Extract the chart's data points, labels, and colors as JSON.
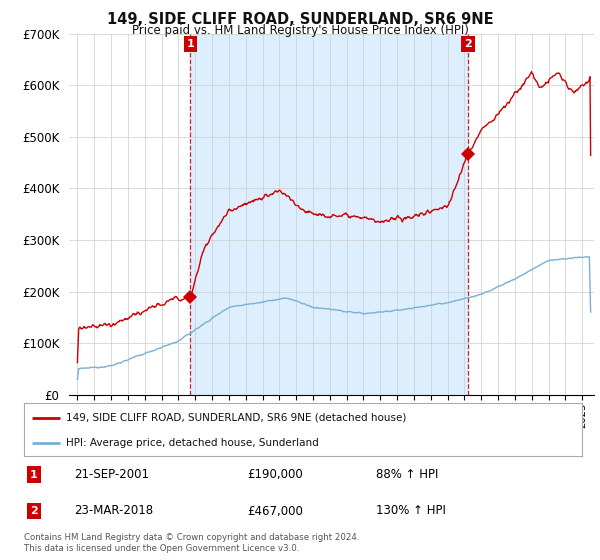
{
  "title": "149, SIDE CLIFF ROAD, SUNDERLAND, SR6 9NE",
  "subtitle": "Price paid vs. HM Land Registry's House Price Index (HPI)",
  "ylim": [
    0,
    700000
  ],
  "yticks": [
    0,
    100000,
    200000,
    300000,
    400000,
    500000,
    600000,
    700000
  ],
  "ytick_labels": [
    "£0",
    "£100K",
    "£200K",
    "£300K",
    "£400K",
    "£500K",
    "£600K",
    "£700K"
  ],
  "xlim_start": 1994.5,
  "xlim_end": 2025.7,
  "sale1_x": 2001.72,
  "sale1_y": 190000,
  "sale2_x": 2018.22,
  "sale2_y": 467000,
  "line_color_red": "#cc0000",
  "line_color_blue": "#7ab0d4",
  "shade_color": "#ddeeff",
  "background_color": "#ffffff",
  "grid_color": "#cccccc",
  "legend_label_red": "149, SIDE CLIFF ROAD, SUNDERLAND, SR6 9NE (detached house)",
  "legend_label_blue": "HPI: Average price, detached house, Sunderland",
  "sale1_date": "21-SEP-2001",
  "sale1_price": "£190,000",
  "sale1_hpi": "88% ↑ HPI",
  "sale2_date": "23-MAR-2018",
  "sale2_price": "£467,000",
  "sale2_hpi": "130% ↑ HPI",
  "box_color": "#cc0000",
  "footer": "Contains HM Land Registry data © Crown copyright and database right 2024.\nThis data is licensed under the Open Government Licence v3.0."
}
